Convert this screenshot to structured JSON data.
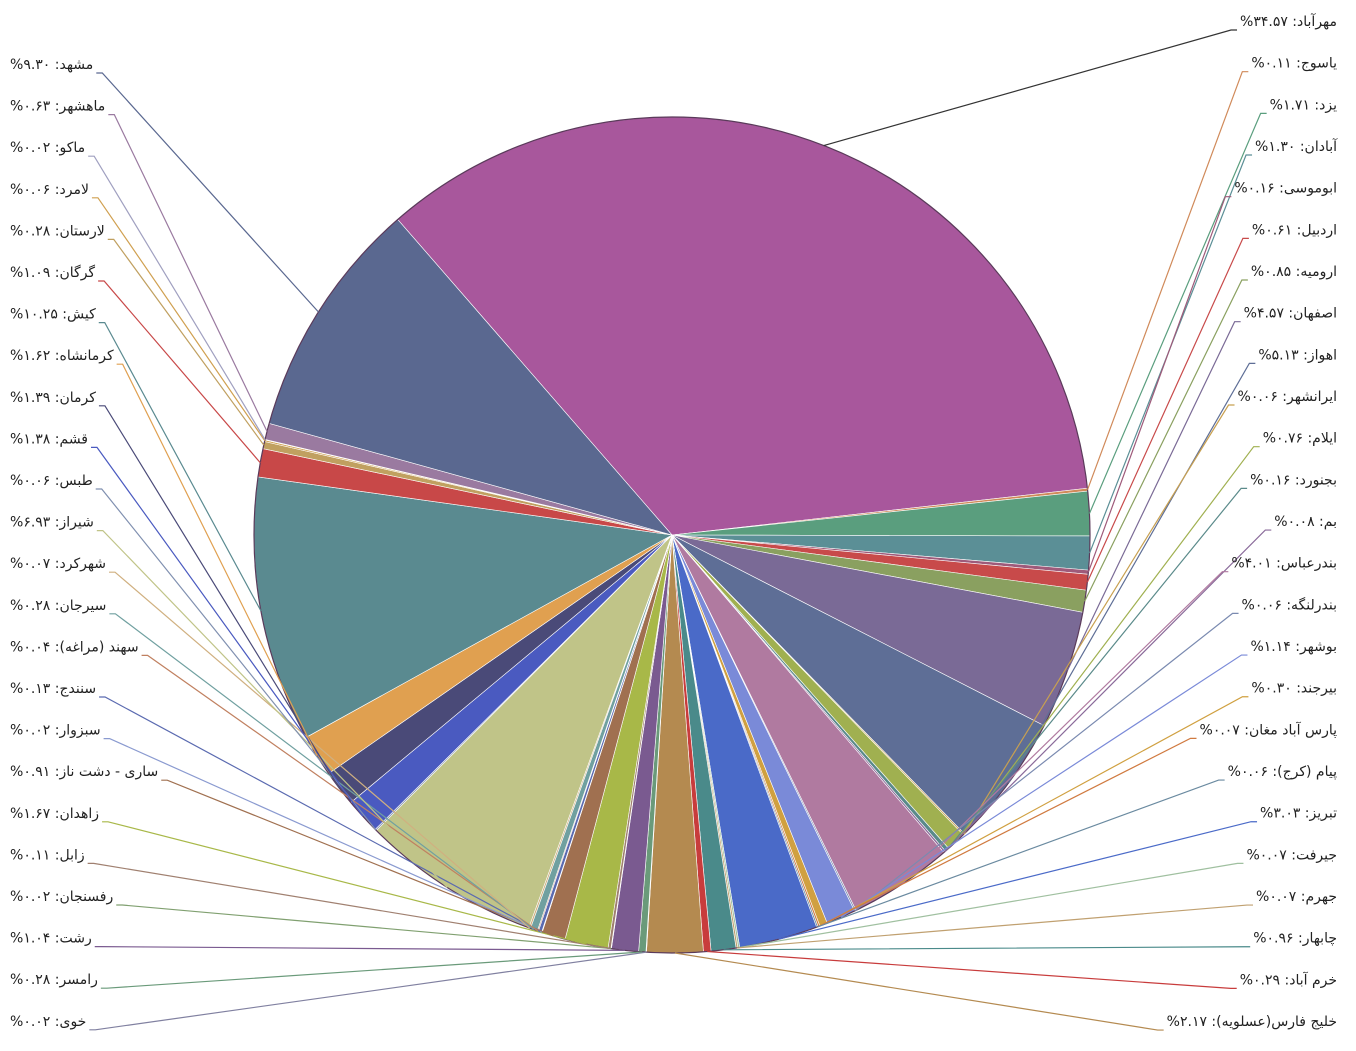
{
  "chart_data": {
    "type": "pie",
    "values": [
      34.57,
      0.11,
      1.71,
      1.3,
      0.16,
      0.61,
      0.85,
      4.57,
      5.13,
      0.06,
      0.76,
      0.16,
      0.08,
      4.01,
      0.06,
      1.14,
      0.3,
      0.07,
      0.06,
      3.03,
      0.07,
      0.07,
      0.96,
      0.29,
      2.17,
      0.02,
      0.28,
      1.04,
      0.02,
      0.11,
      1.67,
      0.91,
      0.02,
      0.13,
      0.04,
      0.28,
      0.07,
      6.93,
      0.06,
      1.38,
      1.39,
      1.62,
      10.25,
      1.09,
      0.28,
      0.06,
      0.02,
      0.63,
      9.3
    ],
    "value_labels": [
      "مهرآباد: ۳۴.۵۷%",
      "یاسوج: ۰.۱۱%",
      "یزد: ۱.۷۱%",
      "آبادان: ۱.۳۰%",
      "ابوموسی: ۰.۱۶%",
      "اردبیل: ۰.۶۱%",
      "ارومیه: ۰.۸۵%",
      "اصفهان: ۴.۵۷%",
      "اهواز: ۵.۱۳%",
      "ایرانشهر: ۰.۰۶%",
      "ایلام: ۰.۷۶%",
      "بجنورد: ۰.۱۶%",
      "بم: ۰.۰۸%",
      "بندرعباس: ۴.۰۱%",
      "بندرلنگه: ۰.۰۶%",
      "بوشهر: ۱.۱۴%",
      "بیرجند: ۰.۳۰%",
      "پارس آباد مغان: ۰.۰۷%",
      "پیام (کرج): ۰.۰۶%",
      "تبریز: ۳.۰۳%",
      "جیرفت: ۰.۰۷%",
      "جهرم: ۰.۰۷%",
      "چابهار: ۰.۹۶%",
      "خرم آباد: ۰.۲۹%",
      "خلیج فارس(عسلویه): ۲.۱۷%",
      "خوی: ۰.۰۲%",
      "رامسر: ۰.۲۸%",
      "رشت: ۱.۰۴%",
      "رفسنجان: ۰.۰۲%",
      "زابل: ۰.۱۱%",
      "زاهدان: ۱.۶۷%",
      "ساری - دشت ناز: ۰.۹۱%",
      "سبزوار: ۰.۰۲%",
      "سنندج: ۰.۱۳%",
      "سهند (مراغه): ۰.۰۴%",
      "سیرجان: ۰.۲۸%",
      "شهرکرد: ۰.۰۷%",
      "شیراز: ۶.۹۳%",
      "طبس: ۰.۰۶%",
      "قشم: ۱.۳۸%",
      "کرمان: ۱.۳۹%",
      "کرمانشاه: ۱.۶۲%",
      "کیش: ۱۰.۲۵%",
      "گرگان: ۱.۰۹%",
      "لارستان: ۰.۲۸%",
      "لامرد: ۰.۰۶%",
      "ماکو: ۰.۰۲%",
      "ماهشهر: ۰.۶۳%",
      "مشهد: ۹.۳۰%"
    ],
    "colors": [
      "#a8579c",
      "#d08a5a",
      "#5a9e7e",
      "#5b8f96",
      "#9e5a7a",
      "#c84a4a",
      "#8aa060",
      "#7a6a96",
      "#5e6e96",
      "#c8a050",
      "#a0b050",
      "#5a8a8a",
      "#8a6a9a",
      "#b07aa0",
      "#7a8ab0",
      "#7a8ad8",
      "#d0a040",
      "#d07a40",
      "#6a8aa0",
      "#4a6ac8",
      "#a0c0a0",
      "#c0a070",
      "#4a8a8a",
      "#c83c3c",
      "#b48a50",
      "#8080a0",
      "#6a9a7a",
      "#7a5a90",
      "#80a070",
      "#a08070",
      "#a8b848",
      "#a07050",
      "#8a9ad0",
      "#5a6ab0",
      "#c08060",
      "#70a0a0",
      "#d0b080",
      "#c0c488",
      "#8090b0",
      "#4a5ac0",
      "#4a4a78",
      "#e0a050",
      "#5a8a90",
      "#c84848",
      "#c0a060",
      "#d0a050",
      "#a0a0c0",
      "#9a7aa0",
      "#5a6890"
    ]
  }
}
